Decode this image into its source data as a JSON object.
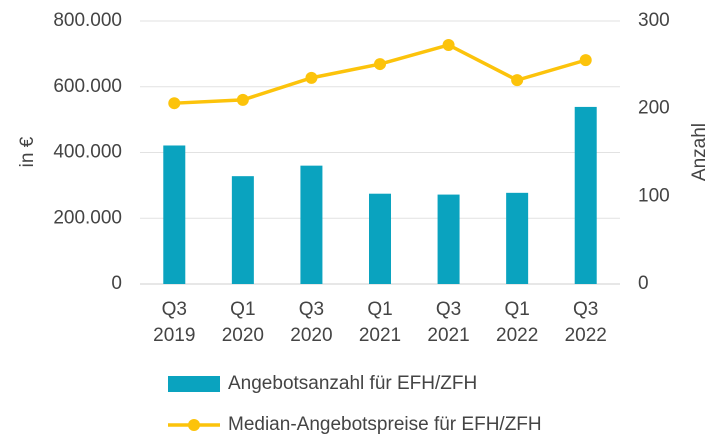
{
  "chart_data": {
    "type": "bar_line",
    "categories": [
      "Q3 2019",
      "Q1 2020",
      "Q3 2020",
      "Q1 2021",
      "Q3 2021",
      "Q1 2022",
      "Q3 2022"
    ],
    "y_label": "in €",
    "y2_label": "Anzahl",
    "ylim": [
      0,
      800000
    ],
    "yticks": [
      {
        "value": 0,
        "label": "0"
      },
      {
        "value": 200000,
        "label": "200.000"
      },
      {
        "value": 400000,
        "label": "400.000"
      },
      {
        "value": 600000,
        "label": "600.000"
      },
      {
        "value": 800000,
        "label": "800.000"
      }
    ],
    "y2lim": [
      0,
      300
    ],
    "y2ticks": [
      0,
      100,
      200,
      300
    ],
    "grid": true,
    "series": [
      {
        "name": "Angebotsanzahl für EFH/ZFH",
        "type": "bar",
        "axis": "y2",
        "color": "#0aa3bf",
        "values": [
          158,
          123,
          135,
          103,
          102,
          104,
          202
        ]
      },
      {
        "name": "Median-Angebotspreise für EFH/ZFH",
        "type": "line",
        "axis": "y",
        "color": "#fcc30b",
        "values": [
          550000,
          560000,
          627000,
          669000,
          727000,
          620000,
          681000
        ]
      }
    ]
  }
}
